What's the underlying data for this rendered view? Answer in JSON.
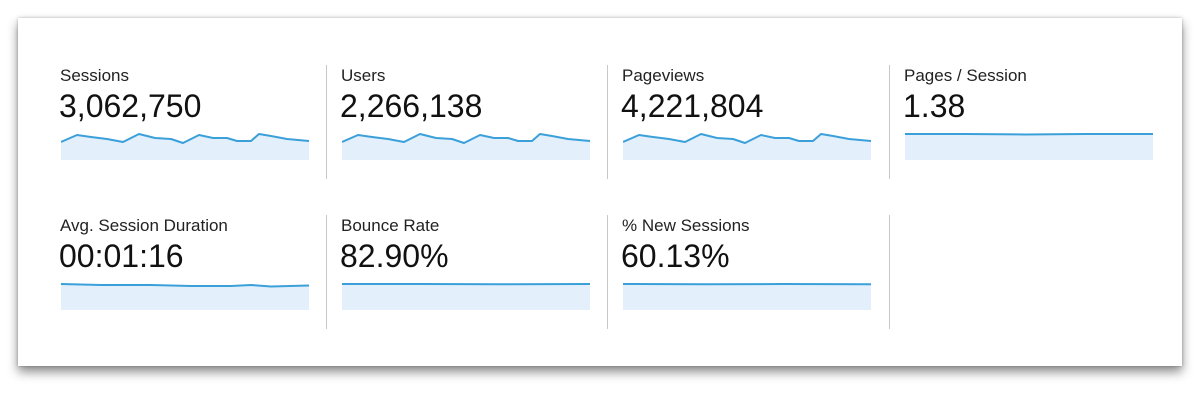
{
  "metrics": [
    {
      "label": "Sessions",
      "value": "3,062,750"
    },
    {
      "label": "Users",
      "value": "2,266,138"
    },
    {
      "label": "Pageviews",
      "value": "4,221,804"
    },
    {
      "label": "Pages / Session",
      "value": "1.38"
    },
    {
      "label": "Avg. Session Duration",
      "value": "00:01:16"
    },
    {
      "label": "Bounce Rate",
      "value": "82.90%"
    },
    {
      "label": "% New Sessions",
      "value": "60.13%"
    }
  ]
}
